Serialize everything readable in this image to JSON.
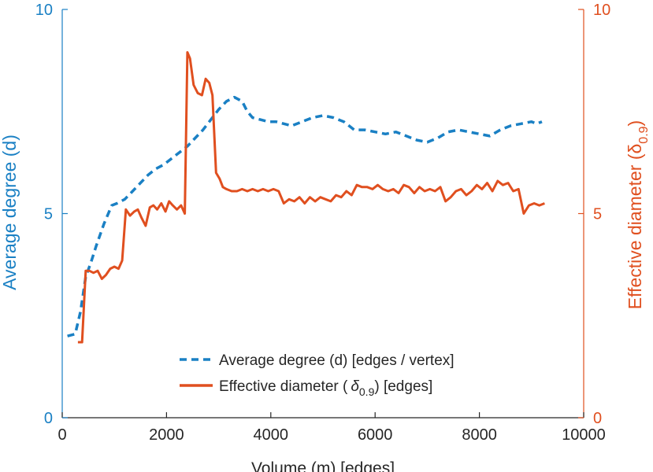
{
  "chart_data": {
    "type": "line",
    "xlabel": "Volume (m) [edges]",
    "ylabel_left": "Average degree (d)",
    "ylabel_right": "Effective diameter (δ",
    "ylabel_right_sub": "0.9",
    "ylabel_right_close": ")",
    "xlim": [
      0,
      10000
    ],
    "ylim_left": [
      0,
      10
    ],
    "ylim_right": [
      0,
      10
    ],
    "xticks": [
      0,
      2000,
      4000,
      6000,
      8000,
      10000
    ],
    "xtick_labels": [
      "0",
      "2000",
      "4000",
      "6000",
      "8000",
      "10000"
    ],
    "yticks_left": [
      0,
      5,
      10
    ],
    "ytick_labels_left": [
      "0",
      "5",
      "10"
    ],
    "yticks_right": [
      0,
      5,
      10
    ],
    "ytick_labels_right": [
      "0",
      "5",
      "10"
    ],
    "legend": {
      "location": "lower-right",
      "entries": [
        {
          "label": "Average degree (d) [edges / vertex]",
          "style": "dashed"
        },
        {
          "label_prefix": "Effective diameter (",
          "label_symbol": "δ",
          "label_sub": "0.9",
          "label_suffix": ") [edges]",
          "style": "solid"
        }
      ]
    },
    "colors": {
      "left": "#1a80c4",
      "right": "#e04f1f",
      "axis": "#262626"
    },
    "series": [
      {
        "name": "Average degree (d) [edges / vertex]",
        "axis": "left",
        "x": [
          100,
          250,
          350,
          450,
          550,
          650,
          800,
          950,
          1050,
          1200,
          1350,
          1500,
          1650,
          1800,
          1950,
          2100,
          2250,
          2400,
          2550,
          2700,
          2850,
          3000,
          3150,
          3300,
          3450,
          3550,
          3650,
          3800,
          3950,
          4100,
          4250,
          4400,
          4600,
          4800,
          5000,
          5200,
          5400,
          5600,
          5800,
          6000,
          6200,
          6400,
          6600,
          6800,
          7000,
          7200,
          7400,
          7600,
          7800,
          8000,
          8200,
          8400,
          8600,
          8800,
          9000,
          9100,
          9200
        ],
        "values": [
          2.0,
          2.05,
          2.6,
          3.45,
          3.8,
          4.2,
          4.75,
          5.2,
          5.25,
          5.35,
          5.55,
          5.75,
          5.95,
          6.1,
          6.2,
          6.35,
          6.5,
          6.65,
          6.85,
          7.05,
          7.3,
          7.55,
          7.75,
          7.85,
          7.75,
          7.5,
          7.35,
          7.3,
          7.25,
          7.25,
          7.2,
          7.15,
          7.25,
          7.35,
          7.4,
          7.35,
          7.25,
          7.05,
          7.05,
          7.0,
          6.95,
          7.0,
          6.9,
          6.8,
          6.75,
          6.85,
          7.0,
          7.05,
          7.0,
          6.95,
          6.9,
          7.05,
          7.15,
          7.2,
          7.25,
          7.2,
          7.25
        ]
      },
      {
        "name": "Effective diameter (δ0.9) [edges]",
        "axis": "right",
        "x": [
          300,
          380,
          450,
          520,
          600,
          680,
          760,
          840,
          920,
          1000,
          1080,
          1150,
          1220,
          1300,
          1380,
          1450,
          1520,
          1600,
          1680,
          1750,
          1820,
          1900,
          1980,
          2050,
          2120,
          2200,
          2280,
          2350,
          2400,
          2450,
          2520,
          2600,
          2680,
          2750,
          2820,
          2880,
          2950,
          3020,
          3080,
          3150,
          3250,
          3350,
          3450,
          3550,
          3650,
          3750,
          3850,
          3950,
          4050,
          4150,
          4250,
          4350,
          4450,
          4550,
          4650,
          4750,
          4850,
          4950,
          5050,
          5150,
          5250,
          5350,
          5450,
          5550,
          5650,
          5750,
          5850,
          5950,
          6050,
          6150,
          6250,
          6350,
          6450,
          6550,
          6650,
          6750,
          6850,
          6950,
          7050,
          7150,
          7250,
          7350,
          7450,
          7550,
          7650,
          7750,
          7850,
          7950,
          8050,
          8150,
          8250,
          8350,
          8450,
          8550,
          8650,
          8750,
          8850,
          8950,
          9050,
          9150,
          9250
        ],
        "values": [
          1.85,
          1.85,
          3.6,
          3.6,
          3.55,
          3.6,
          3.4,
          3.5,
          3.65,
          3.7,
          3.65,
          3.85,
          5.1,
          4.95,
          5.05,
          5.1,
          4.9,
          4.7,
          5.15,
          5.2,
          5.1,
          5.25,
          5.05,
          5.3,
          5.2,
          5.1,
          5.2,
          5.0,
          8.95,
          8.8,
          8.15,
          7.95,
          7.9,
          8.3,
          8.2,
          7.9,
          6.0,
          5.85,
          5.65,
          5.6,
          5.55,
          5.55,
          5.6,
          5.55,
          5.6,
          5.55,
          5.6,
          5.55,
          5.6,
          5.55,
          5.25,
          5.35,
          5.3,
          5.4,
          5.25,
          5.4,
          5.3,
          5.4,
          5.35,
          5.3,
          5.45,
          5.4,
          5.55,
          5.45,
          5.7,
          5.65,
          5.65,
          5.6,
          5.7,
          5.6,
          5.55,
          5.6,
          5.5,
          5.7,
          5.65,
          5.5,
          5.65,
          5.55,
          5.6,
          5.55,
          5.65,
          5.3,
          5.4,
          5.55,
          5.6,
          5.45,
          5.55,
          5.7,
          5.6,
          5.75,
          5.55,
          5.8,
          5.7,
          5.75,
          5.55,
          5.6,
          5.0,
          5.2,
          5.25,
          5.2,
          5.25
        ]
      }
    ]
  }
}
